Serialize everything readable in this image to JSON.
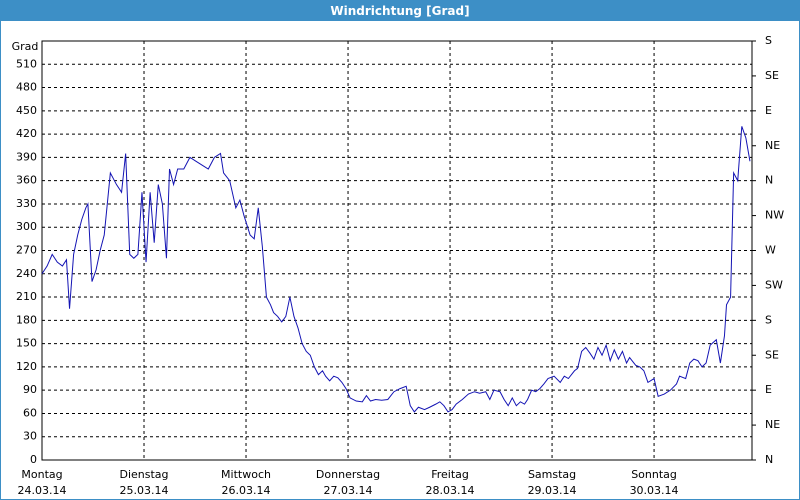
{
  "chart_data": {
    "type": "line",
    "title": "Windrichtung [Grad]",
    "y_label": "Grad",
    "color": "#1414b4",
    "grid": true,
    "ylim": [
      0,
      540
    ],
    "yticks": [
      0,
      30,
      60,
      90,
      120,
      150,
      180,
      210,
      240,
      270,
      300,
      330,
      360,
      390,
      420,
      450,
      480,
      510
    ],
    "y2lim": [
      0,
      540
    ],
    "y2ticks": [
      {
        "value": 540,
        "label": "S"
      },
      {
        "value": 495,
        "label": "SE"
      },
      {
        "value": 450,
        "label": "E"
      },
      {
        "value": 405,
        "label": "NE"
      },
      {
        "value": 360,
        "label": "N"
      },
      {
        "value": 315,
        "label": "NW"
      },
      {
        "value": 270,
        "label": "W"
      },
      {
        "value": 225,
        "label": "SW"
      },
      {
        "value": 180,
        "label": "S"
      },
      {
        "value": 135,
        "label": "SE"
      },
      {
        "value": 90,
        "label": "E"
      },
      {
        "value": 45,
        "label": "NE"
      },
      {
        "value": 0,
        "label": "N"
      }
    ],
    "xlim": [
      0,
      6.96
    ],
    "xticks": [
      {
        "value": 0,
        "label": [
          "Montag",
          "24.03.14"
        ]
      },
      {
        "value": 1,
        "label": [
          "Dienstag",
          "25.03.14"
        ]
      },
      {
        "value": 2,
        "label": [
          "Mittwoch",
          "26.03.14"
        ]
      },
      {
        "value": 3,
        "label": [
          "Donnerstag",
          "27.03.14"
        ]
      },
      {
        "value": 4,
        "label": [
          "Freitag",
          "28.03.14"
        ]
      },
      {
        "value": 5,
        "label": [
          "Samstag",
          "29.03.14"
        ]
      },
      {
        "value": 6,
        "label": [
          "Sonntag",
          "30.03.14"
        ]
      }
    ],
    "x": [
      0,
      0.05,
      0.1,
      0.15,
      0.2,
      0.24,
      0.27,
      0.31,
      0.35,
      0.39,
      0.43,
      0.45,
      0.49,
      0.53,
      0.57,
      0.61,
      0.67,
      0.73,
      0.78,
      0.82,
      0.86,
      0.9,
      0.94,
      0.98,
      1.02,
      1.06,
      1.1,
      1.14,
      1.18,
      1.22,
      1.25,
      1.29,
      1.33,
      1.39,
      1.45,
      1.51,
      1.57,
      1.63,
      1.69,
      1.75,
      1.78,
      1.84,
      1.9,
      1.94,
      1.98,
      2.04,
      2.08,
      2.12,
      2.16,
      2.2,
      2.24,
      2.27,
      2.31,
      2.35,
      2.39,
      2.43,
      2.47,
      2.51,
      2.55,
      2.59,
      2.63,
      2.67,
      2.71,
      2.75,
      2.78,
      2.82,
      2.86,
      2.9,
      2.94,
      2.98,
      3.02,
      3.08,
      3.14,
      3.18,
      3.22,
      3.27,
      3.33,
      3.39,
      3.45,
      3.51,
      3.57,
      3.61,
      3.65,
      3.69,
      3.75,
      3.8,
      3.86,
      3.9,
      3.94,
      3.98,
      4.02,
      4.06,
      4.12,
      4.18,
      4.24,
      4.29,
      4.35,
      4.39,
      4.43,
      4.49,
      4.53,
      4.57,
      4.61,
      4.65,
      4.69,
      4.73,
      4.76,
      4.8,
      4.84,
      4.88,
      4.92,
      4.96,
      5.02,
      5.08,
      5.12,
      5.16,
      5.22,
      5.25,
      5.29,
      5.33,
      5.37,
      5.41,
      5.45,
      5.49,
      5.53,
      5.57,
      5.61,
      5.65,
      5.69,
      5.73,
      5.76,
      5.82,
      5.86,
      5.9,
      5.94,
      6.0,
      6.04,
      6.1,
      6.16,
      6.22,
      6.25,
      6.31,
      6.35,
      6.39,
      6.43,
      6.47,
      6.51,
      6.55,
      6.61,
      6.65,
      6.69,
      6.71,
      6.75,
      6.78,
      6.82,
      6.86,
      6.9,
      6.94
    ],
    "values": [
      240,
      250,
      265,
      255,
      250,
      258,
      195,
      265,
      290,
      310,
      325,
      330,
      230,
      245,
      270,
      290,
      370,
      355,
      345,
      395,
      265,
      260,
      265,
      345,
      255,
      345,
      280,
      355,
      330,
      260,
      375,
      355,
      375,
      375,
      390,
      385,
      380,
      375,
      390,
      395,
      370,
      360,
      325,
      335,
      315,
      290,
      285,
      325,
      275,
      210,
      200,
      190,
      185,
      178,
      185,
      210,
      185,
      170,
      150,
      140,
      135,
      120,
      110,
      115,
      108,
      102,
      108,
      106,
      100,
      92,
      80,
      76,
      75,
      83,
      76,
      78,
      77,
      78,
      88,
      92,
      95,
      70,
      62,
      68,
      65,
      68,
      72,
      75,
      70,
      62,
      65,
      72,
      78,
      85,
      88,
      86,
      88,
      78,
      90,
      88,
      78,
      70,
      80,
      70,
      75,
      72,
      78,
      90,
      88,
      92,
      98,
      105,
      108,
      100,
      108,
      105,
      115,
      118,
      140,
      145,
      138,
      130,
      145,
      135,
      148,
      128,
      142,
      130,
      140,
      125,
      132,
      122,
      120,
      115,
      100,
      105,
      82,
      85,
      90,
      98,
      108,
      105,
      125,
      130,
      128,
      120,
      125,
      148,
      155,
      125,
      160,
      200,
      210,
      370,
      360,
      430,
      415,
      385
    ]
  }
}
